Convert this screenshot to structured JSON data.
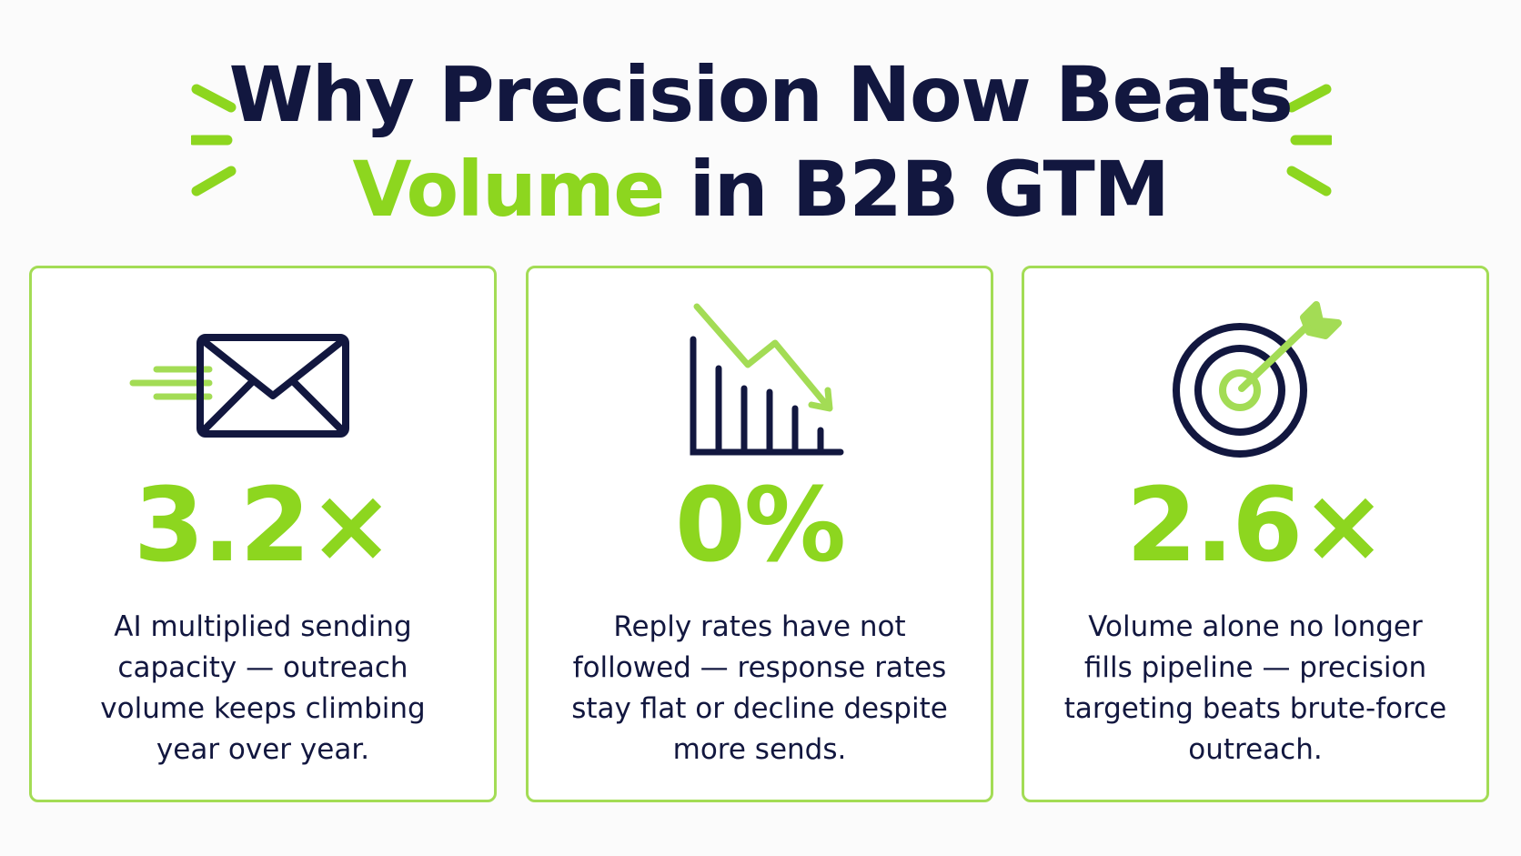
{
  "title": {
    "line1": "Why Precision Now Beats",
    "accent": "Volume",
    "line2_rest": " in B2B GTM"
  },
  "colors": {
    "navy": "#12173f",
    "accent": "#8dd61f",
    "border": "#a3dc55"
  },
  "cards": [
    {
      "icon": "envelope-icon",
      "stat": "3.2×",
      "description": "AI multiplied sending capacity — outreach volume keeps climbing year over year."
    },
    {
      "icon": "declining-chart-icon",
      "stat": "0%",
      "description": "Reply rates have not followed — response rates stay flat or decline despite more sends."
    },
    {
      "icon": "target-icon",
      "stat": "2.6×",
      "description": "Volume alone no longer fills pipeline — precision targeting beats brute-force outreach."
    }
  ]
}
